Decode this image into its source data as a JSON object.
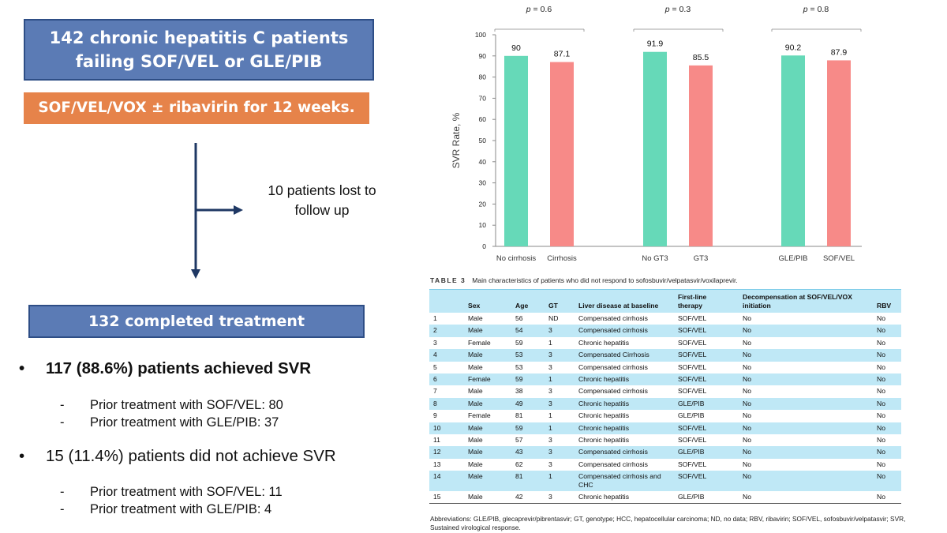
{
  "flowchart": {
    "header_line1": "142 chronic hepatitis C patients",
    "header_line2": "failing SOF/VEL or GLE/PIB",
    "regimen": "SOF/VEL/VOX ± ribavirin for 12 weeks.",
    "lost_line1": "10 patients lost to",
    "lost_line2": "follow up",
    "completed": "132 completed treatment"
  },
  "results": {
    "bullet": "•",
    "dash": "-",
    "achieved": "117 (88.6%) patients achieved SVR",
    "achieved_sof": "Prior treatment with SOF/VEL: 80",
    "achieved_gle": "Prior treatment with GLE/PIB: 37",
    "not_achieved": "15 (11.4%) patients did not achieve SVR",
    "not_sof": "Prior treatment with SOF/VEL: 11",
    "not_gle": "Prior treatment with GLE/PIB: 4"
  },
  "colors": {
    "box_blue": "#5b7bb5",
    "box_orange": "#e6834a",
    "arrow": "#1f3864",
    "bar_green": "#66d9b8",
    "bar_red": "#f78a88",
    "table_band": "#bfe8f6"
  },
  "chart_data": {
    "type": "bar",
    "ylabel": "SVR Rate, %",
    "ylim": [
      0,
      100
    ],
    "yticks": [
      0,
      10,
      20,
      30,
      40,
      50,
      60,
      70,
      80,
      90,
      100
    ],
    "grid": false,
    "groups": [
      {
        "p": "p = 0.6",
        "bars": [
          {
            "label": "No cirrhosis",
            "value": 90,
            "value_label": "90",
            "color": "green"
          },
          {
            "label": "Cirrhosis",
            "value": 87.1,
            "value_label": "87.1",
            "color": "red"
          }
        ]
      },
      {
        "p": "p = 0.3",
        "bars": [
          {
            "label": "No GT3",
            "value": 91.9,
            "value_label": "91.9",
            "color": "green"
          },
          {
            "label": "GT3",
            "value": 85.5,
            "value_label": "85.5",
            "color": "red"
          }
        ]
      },
      {
        "p": "p = 0.8",
        "bars": [
          {
            "label": "GLE/PIB",
            "value": 90.2,
            "value_label": "90.2",
            "color": "green"
          },
          {
            "label": "SOF/VEL",
            "value": 87.9,
            "value_label": "87.9",
            "color": "red"
          }
        ]
      }
    ]
  },
  "table": {
    "label": "TABLE 3",
    "caption": "Main characteristics of patients who did not respond to sofosbuvir/velpatasvir/voxilaprevir.",
    "headers": {
      "num": "",
      "sex": "Sex",
      "age": "Age",
      "gt": "GT",
      "liver": "Liver disease at baseline",
      "first_line_1": "First-line",
      "first_line_2": "therapy",
      "decomp_1": "Decompensation at SOF/VEL/VOX",
      "decomp_2": "initiation",
      "rbv": "RBV"
    },
    "rows": [
      {
        "n": "1",
        "sex": "Male",
        "age": "56",
        "gt": "ND",
        "liver": "Compensated cirrhosis",
        "therapy": "SOF/VEL",
        "decomp": "No",
        "rbv": "No"
      },
      {
        "n": "2",
        "sex": "Male",
        "age": "54",
        "gt": "3",
        "liver": "Compensated cirrhosis",
        "therapy": "SOF/VEL",
        "decomp": "No",
        "rbv": "No"
      },
      {
        "n": "3",
        "sex": "Female",
        "age": "59",
        "gt": "1",
        "liver": "Chronic hepatitis",
        "therapy": "SOF/VEL",
        "decomp": "No",
        "rbv": "No"
      },
      {
        "n": "4",
        "sex": "Male",
        "age": "53",
        "gt": "3",
        "liver": "Compensated Cirrhosis",
        "therapy": "SOF/VEL",
        "decomp": "No",
        "rbv": "No"
      },
      {
        "n": "5",
        "sex": "Male",
        "age": "53",
        "gt": "3",
        "liver": "Compensated cirrhosis",
        "therapy": "SOF/VEL",
        "decomp": "No",
        "rbv": "No"
      },
      {
        "n": "6",
        "sex": "Female",
        "age": "59",
        "gt": "1",
        "liver": "Chronic hepatitis",
        "therapy": "SOF/VEL",
        "decomp": "No",
        "rbv": "No"
      },
      {
        "n": "7",
        "sex": "Male",
        "age": "38",
        "gt": "3",
        "liver": "Compensated cirrhosis",
        "therapy": "SOF/VEL",
        "decomp": "No",
        "rbv": "No"
      },
      {
        "n": "8",
        "sex": "Male",
        "age": "49",
        "gt": "3",
        "liver": "Chronic hepatitis",
        "therapy": "GLE/PIB",
        "decomp": "No",
        "rbv": "No"
      },
      {
        "n": "9",
        "sex": "Female",
        "age": "81",
        "gt": "1",
        "liver": "Chronic hepatitis",
        "therapy": "GLE/PIB",
        "decomp": "No",
        "rbv": "No"
      },
      {
        "n": "10",
        "sex": "Male",
        "age": "59",
        "gt": "1",
        "liver": "Chronic hepatitis",
        "therapy": "SOF/VEL",
        "decomp": "No",
        "rbv": "No"
      },
      {
        "n": "11",
        "sex": "Male",
        "age": "57",
        "gt": "3",
        "liver": "Chronic hepatitis",
        "therapy": "SOF/VEL",
        "decomp": "No",
        "rbv": "No"
      },
      {
        "n": "12",
        "sex": "Male",
        "age": "43",
        "gt": "3",
        "liver": "Compensated cirrhosis",
        "therapy": "GLE/PIB",
        "decomp": "No",
        "rbv": "No"
      },
      {
        "n": "13",
        "sex": "Male",
        "age": "62",
        "gt": "3",
        "liver": "Compensated cirrhosis",
        "therapy": "SOF/VEL",
        "decomp": "No",
        "rbv": "No"
      },
      {
        "n": "14",
        "sex": "Male",
        "age": "81",
        "gt": "1",
        "liver": "Compensated cirrhosis and CHC",
        "therapy": "SOF/VEL",
        "decomp": "No",
        "rbv": "No"
      },
      {
        "n": "15",
        "sex": "Male",
        "age": "42",
        "gt": "3",
        "liver": "Chronic hepatitis",
        "therapy": "GLE/PIB",
        "decomp": "No",
        "rbv": "No"
      }
    ],
    "footnote": "Abbreviations: GLE/PIB, glecaprevir/pibrentasvir; GT, genotype; HCC, hepatocellular carcinoma; ND, no data; RBV, ribavirin; SOF/VEL, sofosbuvir/velpatasvir; SVR, Sustained virological response."
  }
}
